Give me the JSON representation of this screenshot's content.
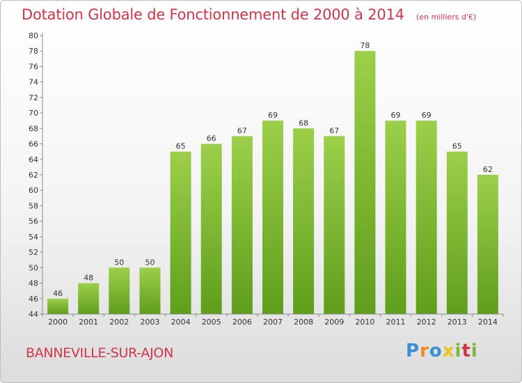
{
  "header": {
    "title": "Dotation Globale de Fonctionnement de 2000 à 2014",
    "unit_note": "(en milliers d'€)"
  },
  "footer": {
    "commune": "BANNEVILLE-SUR-AJON",
    "brand": "Proxiti",
    "brand_letters": [
      {
        "char": "P",
        "color": "#3a8fd6"
      },
      {
        "char": "r",
        "color": "#f08a1c"
      },
      {
        "char": "o",
        "color": "#3a8fd6"
      },
      {
        "char": "x",
        "color": "#e8c51a"
      },
      {
        "char": "i",
        "color": "#78b83a"
      },
      {
        "char": "t",
        "color": "#d0344a"
      },
      {
        "char": "i",
        "color": "#78b83a"
      }
    ]
  },
  "chart_data": {
    "type": "bar",
    "title": "Dotation Globale de Fonctionnement de 2000 à 2014",
    "subtitle": "(en milliers d'€)",
    "categories": [
      "2000",
      "2001",
      "2002",
      "2003",
      "2004",
      "2005",
      "2006",
      "2007",
      "2008",
      "2009",
      "2010",
      "2011",
      "2012",
      "2013",
      "2014"
    ],
    "values": [
      46,
      48,
      50,
      50,
      65,
      66,
      67,
      69,
      68,
      67,
      78,
      69,
      69,
      65,
      62
    ],
    "xlabel": "",
    "ylabel": "",
    "ylim": [
      44,
      80
    ],
    "ytick_step": 2,
    "grid": false,
    "bar_color_top": "#9ccf4a",
    "bar_color_bottom": "#5f9e1b"
  }
}
